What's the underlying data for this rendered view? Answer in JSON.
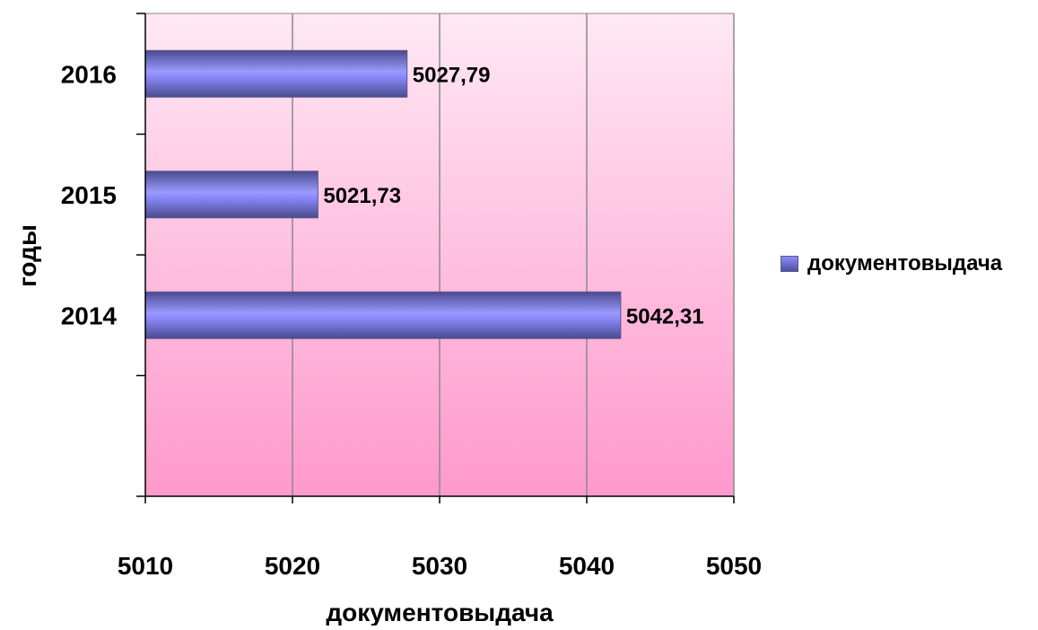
{
  "chart_data": {
    "type": "bar",
    "orientation": "horizontal",
    "categories": [
      "2016",
      "2015",
      "2014"
    ],
    "series": [
      {
        "name": "документовыдача",
        "values": [
          5027.79,
          5021.73,
          5042.31
        ]
      }
    ],
    "data_labels": [
      "5027,79",
      "5021,73",
      "5042,31"
    ],
    "xlim": [
      5010,
      5050
    ],
    "xticks": [
      "5010",
      "5020",
      "5030",
      "5040",
      "5050"
    ],
    "xlabel": "документовыдача",
    "ylabel": "годы",
    "grid": "vertical",
    "legend": "right",
    "colors": {
      "bar": "#8c8cff",
      "bar_dark": "#4a4a8e",
      "plot_top": "#ffe8f4",
      "plot_bottom": "#ff99cc"
    }
  }
}
